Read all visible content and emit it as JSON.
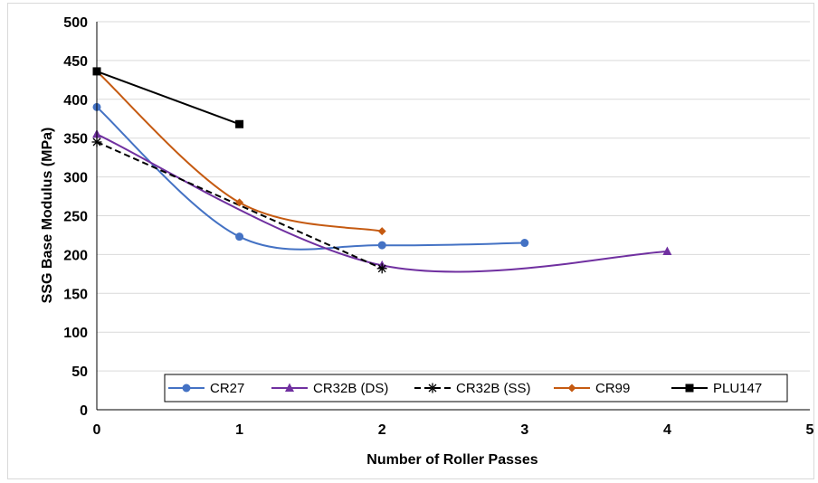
{
  "chart_data": {
    "type": "line",
    "xlabel": "Number of Roller Passes",
    "ylabel": "SSG Base Modulus (MPa)",
    "xlim": [
      0,
      5
    ],
    "ylim": [
      0,
      500
    ],
    "x_ticks": [
      0,
      1,
      2,
      3,
      4,
      5
    ],
    "y_ticks": [
      0,
      50,
      100,
      150,
      200,
      250,
      300,
      350,
      400,
      450,
      500
    ],
    "grid": "horizontal",
    "legend_position": "bottom-inside",
    "series": [
      {
        "name": "CR27",
        "color": "#4472C4",
        "marker": "circle",
        "dash": false,
        "smooth": true,
        "x": [
          0,
          1,
          2,
          3
        ],
        "y": [
          390,
          223,
          212,
          215
        ]
      },
      {
        "name": "CR32B (DS)",
        "color": "#7030A0",
        "marker": "triangle",
        "dash": false,
        "smooth": true,
        "x": [
          0,
          2,
          4
        ],
        "y": [
          355,
          186,
          204
        ]
      },
      {
        "name": "CR32B (SS)",
        "color": "#000000",
        "marker": "star",
        "dash": true,
        "smooth": false,
        "x": [
          0,
          2
        ],
        "y": [
          345,
          182
        ]
      },
      {
        "name": "CR99",
        "color": "#C55A11",
        "marker": "diamond",
        "dash": false,
        "smooth": true,
        "x": [
          0,
          1,
          2
        ],
        "y": [
          436,
          267,
          230
        ]
      },
      {
        "name": "PLU147",
        "color": "#000000",
        "marker": "square",
        "dash": false,
        "smooth": false,
        "x": [
          0,
          1
        ],
        "y": [
          436,
          368
        ]
      }
    ]
  }
}
